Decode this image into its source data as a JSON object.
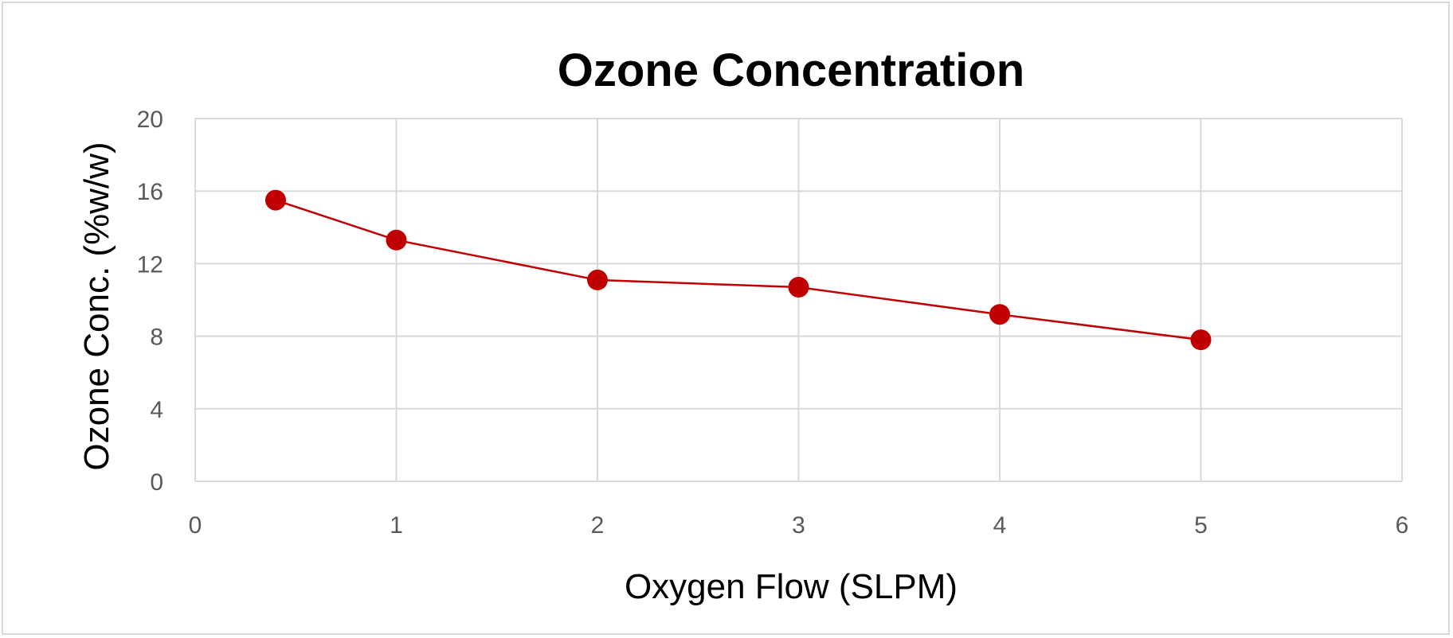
{
  "chart_data": {
    "type": "line",
    "title": "Ozone Concentration",
    "xlabel": "Oxygen Flow (SLPM)",
    "ylabel": "Ozone Conc. (%w/w)",
    "xlim": [
      0,
      6
    ],
    "ylim": [
      0,
      20
    ],
    "xticks": [
      "0",
      "1",
      "2",
      "3",
      "4",
      "5",
      "6"
    ],
    "yticks": [
      "0",
      "4",
      "8",
      "12",
      "16",
      "20"
    ],
    "grid": true,
    "series": [
      {
        "name": "Ozone Concentration",
        "color": "#c00000",
        "x": [
          0.4,
          1,
          2,
          3,
          4,
          5
        ],
        "y": [
          15.5,
          13.3,
          11.1,
          10.7,
          9.2,
          7.8
        ]
      }
    ]
  }
}
